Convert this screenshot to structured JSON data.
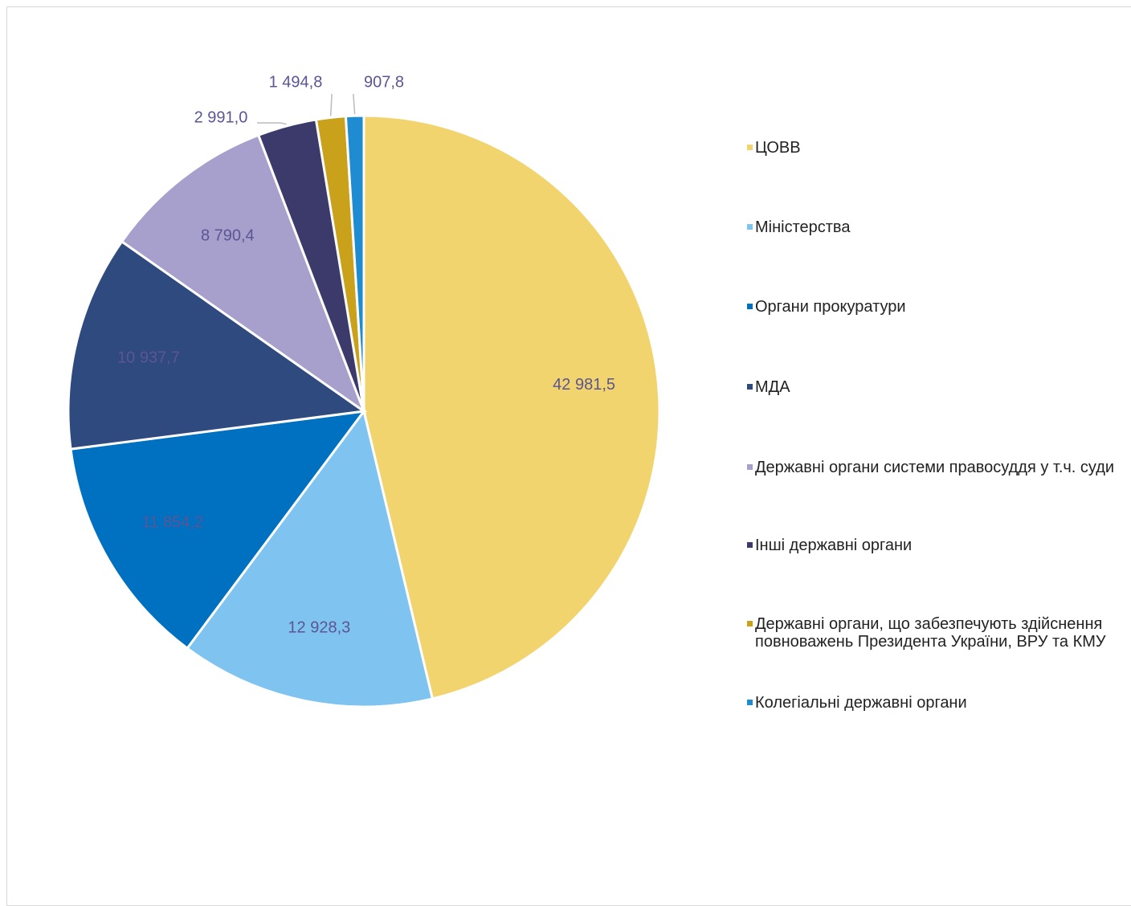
{
  "chart_data": {
    "type": "pie",
    "categories": [
      "ЦОВВ",
      "Міністерства",
      "Органи прокуратури",
      "МДА",
      "Державні органи системи правосуддя у т.ч. суди",
      "Інші державні органи",
      "Державні органи, що забезпечують здійснення повноважень Президента України, ВРУ та КМУ",
      "Колегіальні державні органи"
    ],
    "values": [
      42981.5,
      12928.3,
      11854.2,
      10937.7,
      8790.4,
      2991.0,
      1494.8,
      907.8
    ],
    "value_labels": [
      "42 981,5",
      "12 928,3",
      "11 854,2",
      "10 937,7",
      "8 790,4",
      "2 991,0",
      "1 494,8",
      "907,8"
    ],
    "colors": [
      "#f2d46e",
      "#7fc4f0",
      "#0070c0",
      "#2e4a7e",
      "#a7a0cc",
      "#3b3a6b",
      "#c9a11a",
      "#1f8bd0"
    ],
    "legend": "right"
  }
}
